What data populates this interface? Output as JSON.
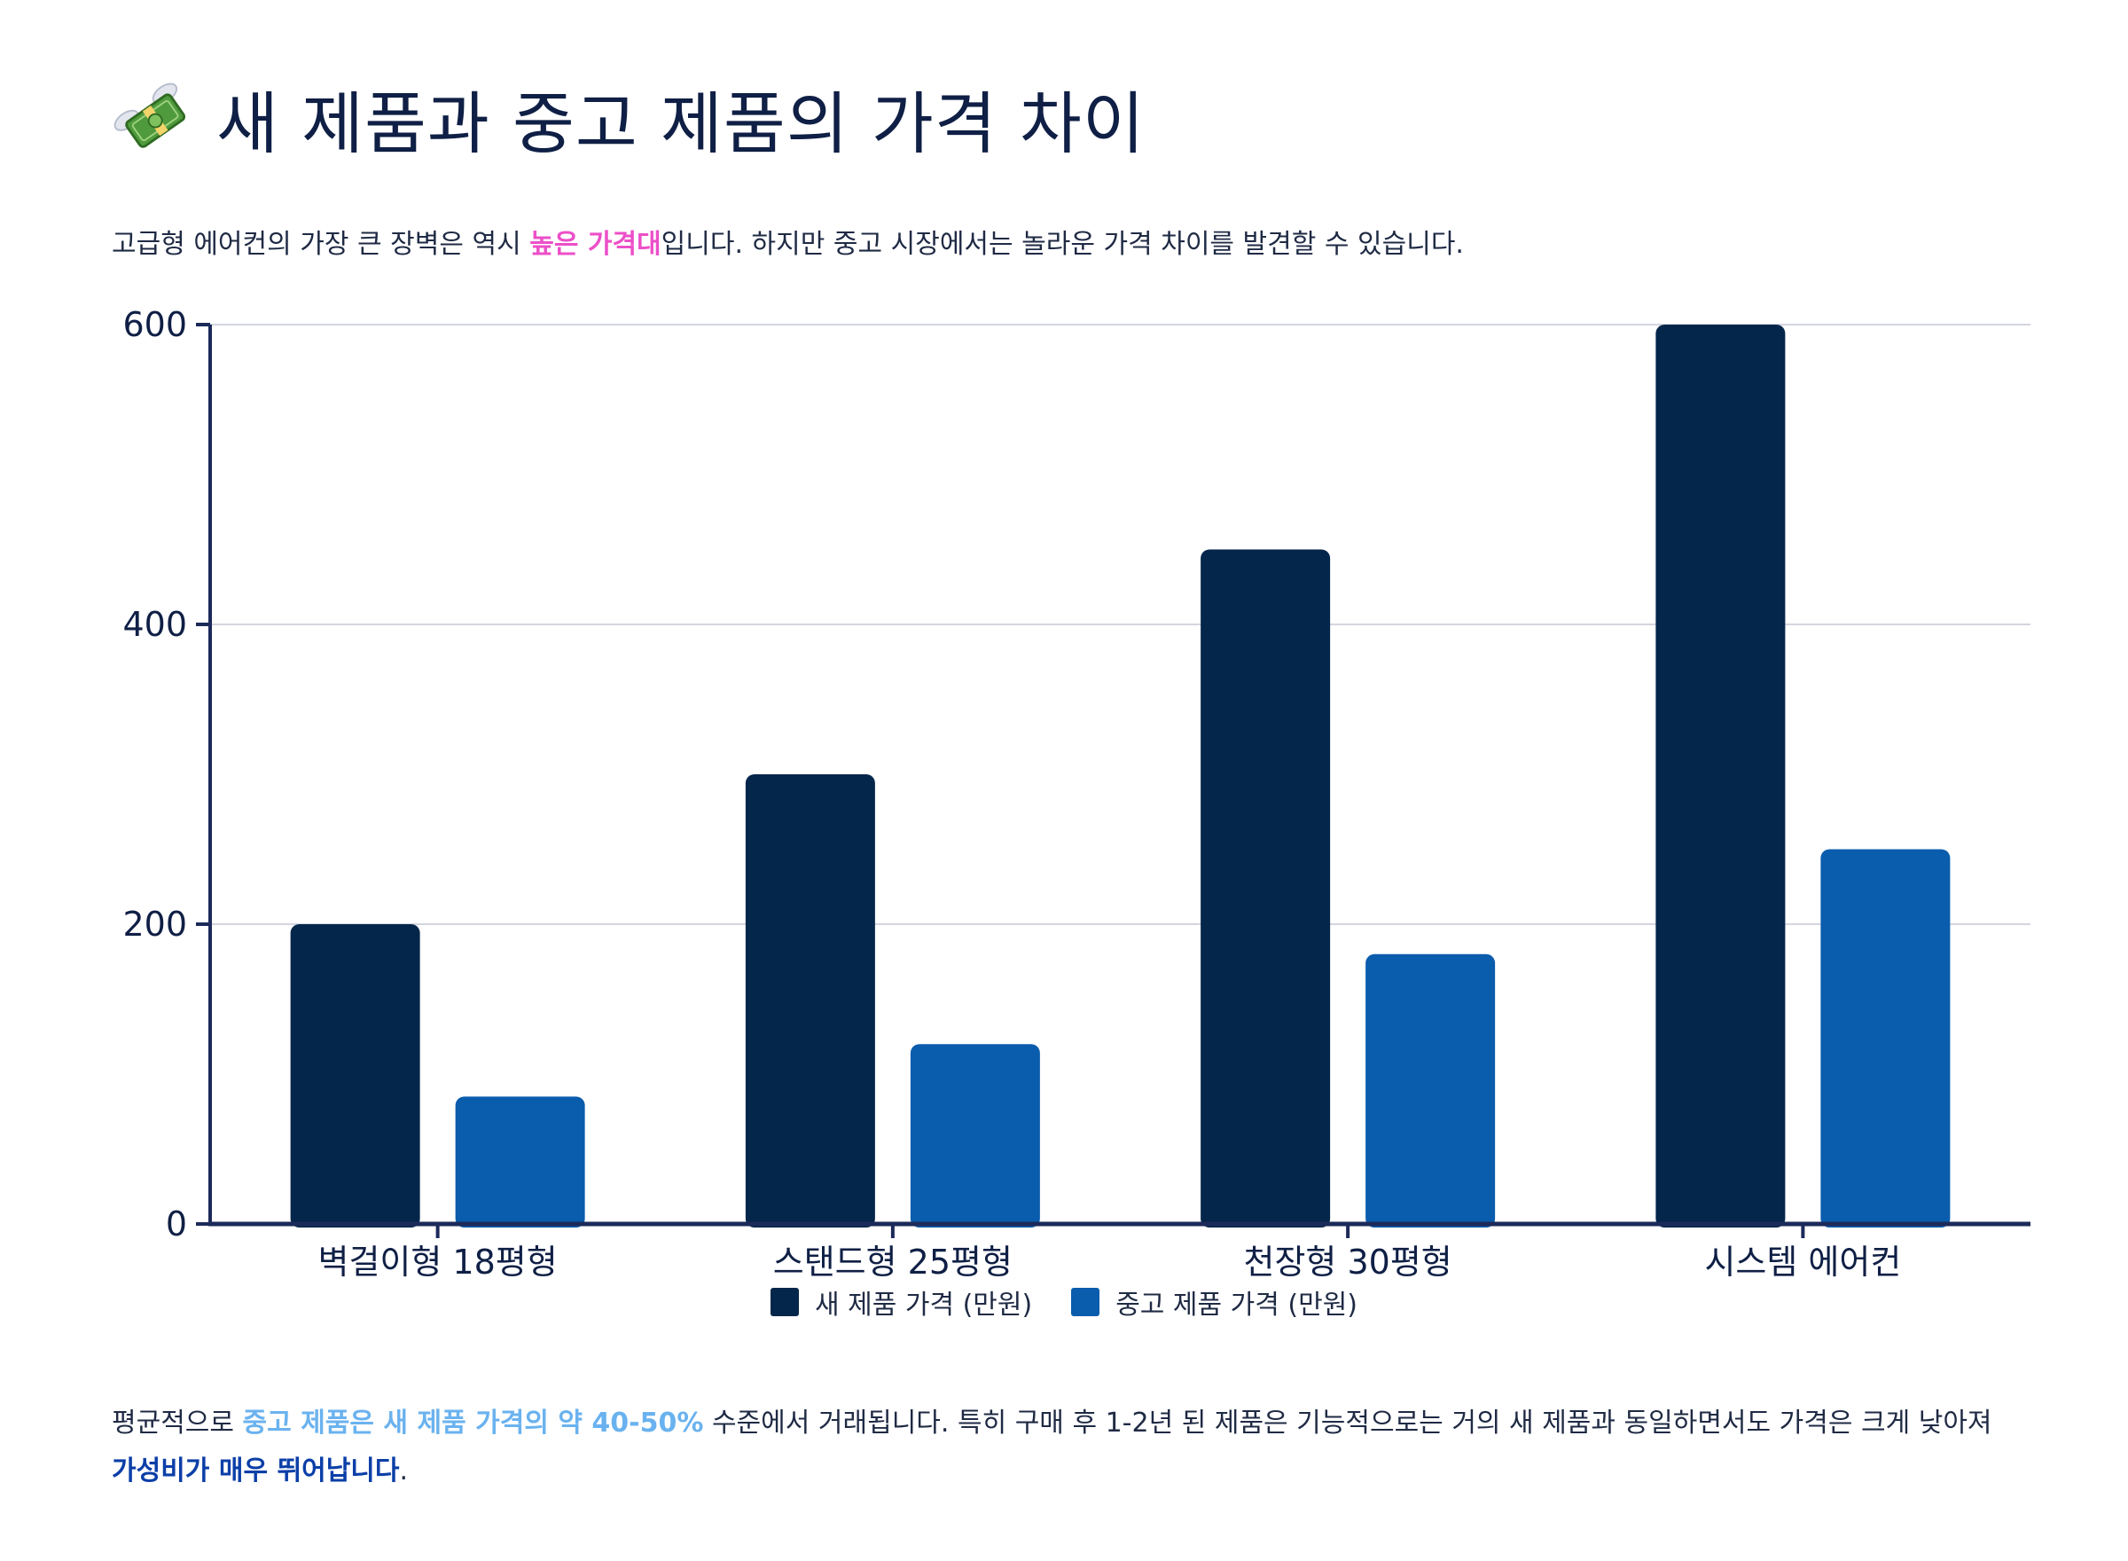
{
  "header": {
    "title": "새 제품과 중고 제품의 가격 차이"
  },
  "intro": {
    "before": "고급형 에어컨의 가장 큰 장벽은 역시 ",
    "highlight": "높은 가격대",
    "after": "입니다. 하지만 중고 시장에서는 놀라운 가격 차이를 발견할 수 있습니다."
  },
  "conclusion": {
    "part1": "평균적으로 ",
    "highlight1": "중고 제품은 새 제품 가격의 약 40-50%",
    "part2": " 수준에서 거래됩니다. 특히 구매 후 1-2년 된 제품은 기능적으로는 거의 새 제품과 동일하면서도 가격은 크게 낮아져 ",
    "highlight2": "가성비가 매우 뛰어납니다",
    "part3": "."
  },
  "colors": {
    "new": "#04264a",
    "used": "#0a5cad",
    "axis": "#1c2a5a",
    "grid": "#d3d5e0",
    "text": "#0f1f45"
  },
  "chart_data": {
    "type": "bar",
    "categories": [
      "벽걸이형 18평형",
      "스탠드형 25평형",
      "천장형 30평형",
      "시스템 에어컨"
    ],
    "series": [
      {
        "name": "새 제품 가격 (만원)",
        "values": [
          200,
          300,
          450,
          600
        ]
      },
      {
        "name": "중고 제품 가격 (만원)",
        "values": [
          85,
          120,
          180,
          250
        ]
      }
    ],
    "yticks": [
      0,
      200,
      400,
      600
    ],
    "ylim": [
      0,
      600
    ],
    "grid": true,
    "legend": "bottom-center",
    "xlabel": "",
    "ylabel": ""
  }
}
